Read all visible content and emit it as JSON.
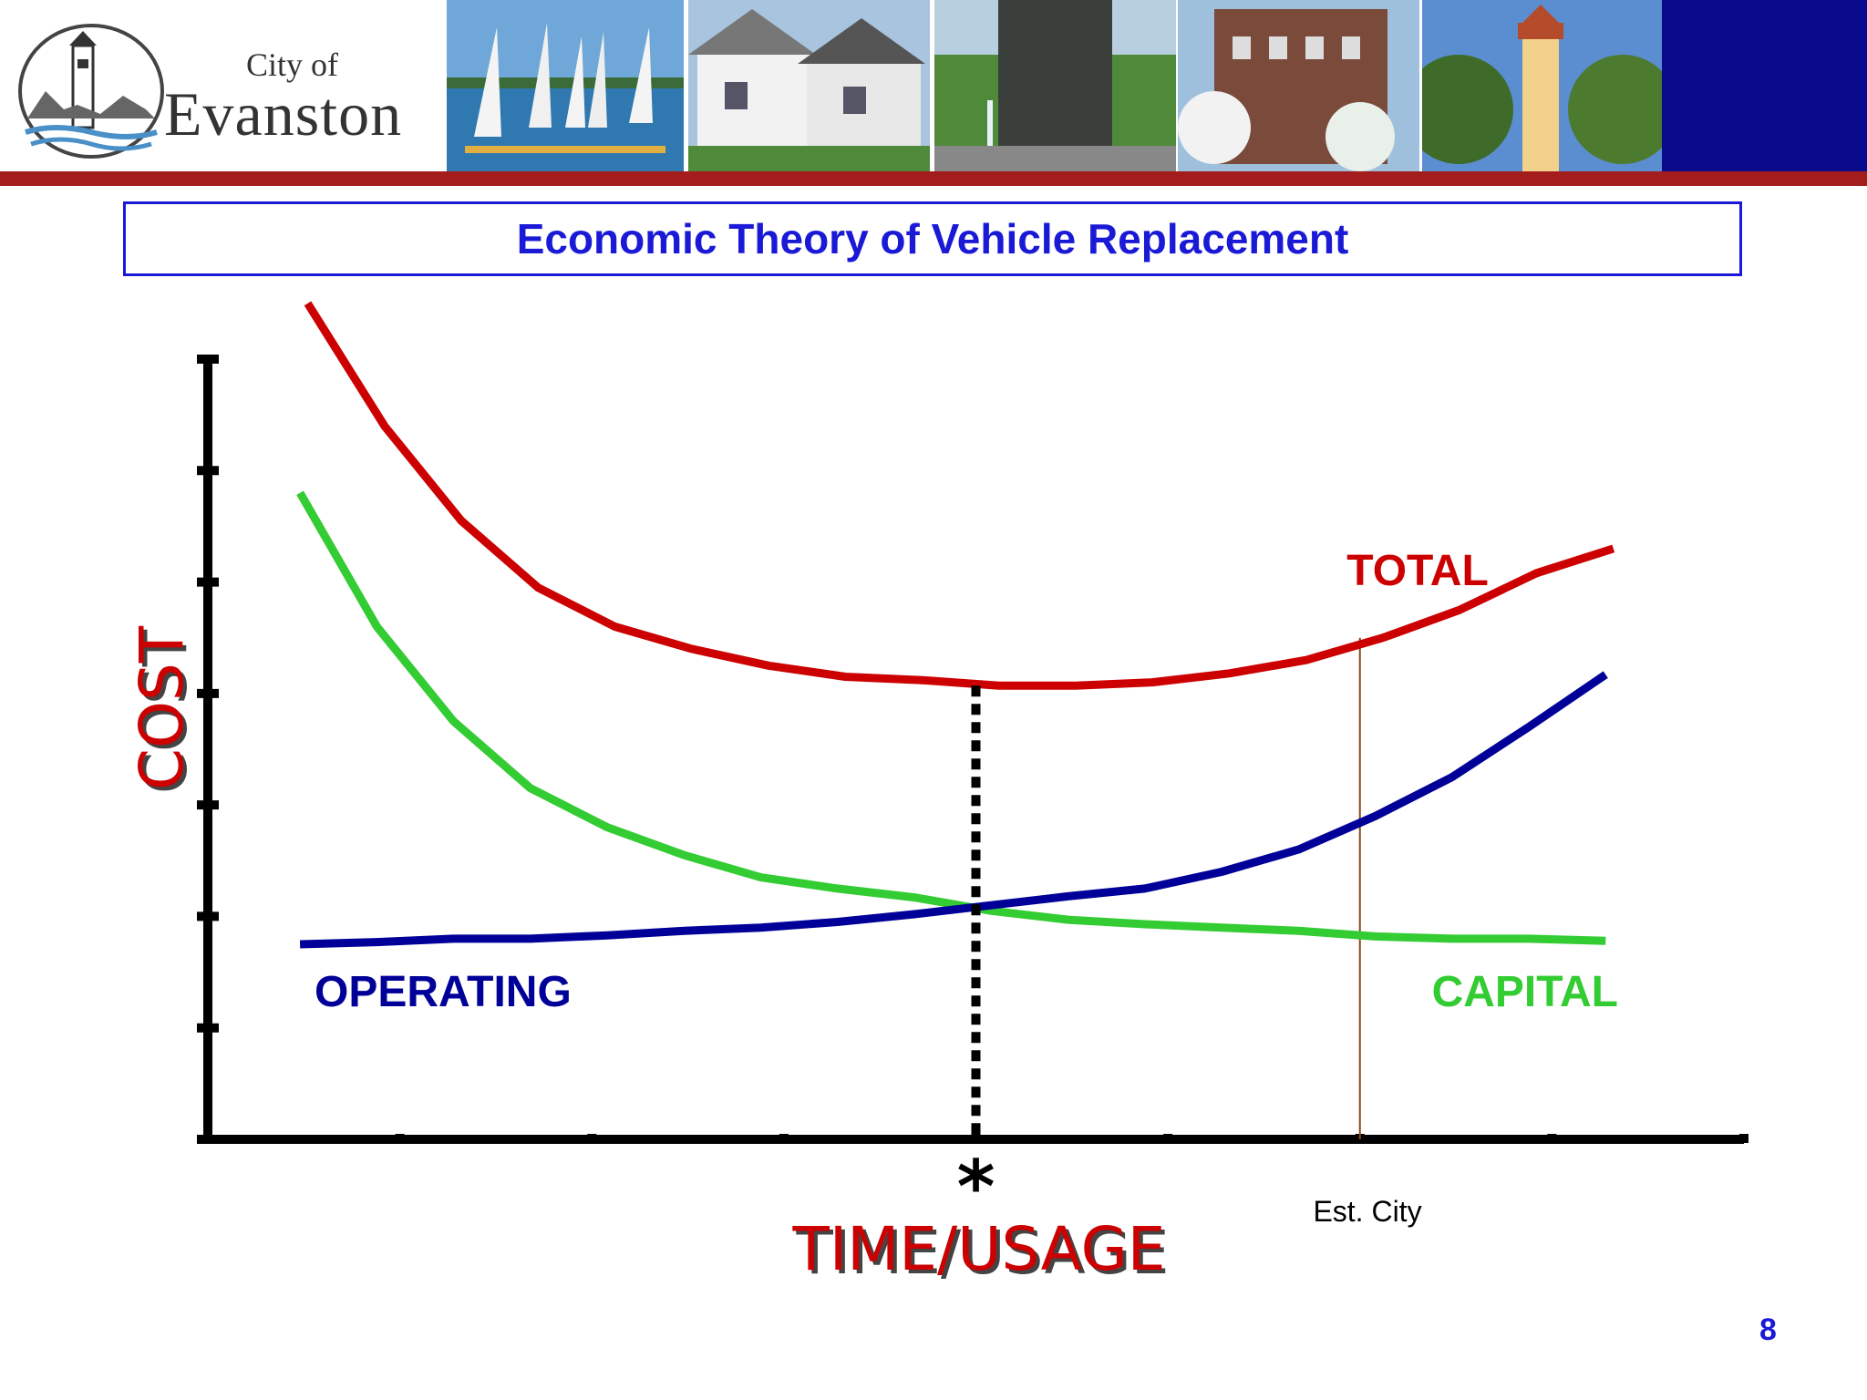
{
  "header": {
    "logo": {
      "city_of": "City of",
      "name": "Evanston"
    },
    "photos": [
      "sailboats-photo",
      "houses-photo",
      "fountain-tower-photo",
      "brick-building-photo",
      "lighthouse-photo"
    ],
    "colors": {
      "rule": "#a31d1d",
      "navy_block": "#0a0a8c"
    }
  },
  "slide": {
    "title": "Economic Theory of Vehicle Replacement",
    "page_number": "8"
  },
  "chart_data": {
    "type": "line",
    "title": "Economic Theory of Vehicle Replacement",
    "xlabel": "TIME/USAGE",
    "ylabel": "COST",
    "xlim": [
      0,
      20
    ],
    "ylim": [
      0,
      7
    ],
    "x_ticks": [
      0,
      2.5,
      5,
      7.5,
      10,
      12.5,
      15,
      17.5,
      20
    ],
    "y_ticks": [
      1,
      2,
      3,
      4,
      5,
      6,
      7
    ],
    "series": [
      {
        "name": "TOTAL",
        "color": "#cc0000",
        "x": [
          1.3,
          2.3,
          3.3,
          4.3,
          5.3,
          6.3,
          7.3,
          8.3,
          9.3,
          10.3,
          11.3,
          12.3,
          13.3,
          14.3,
          15.3,
          16.3,
          17.3,
          18.3
        ],
        "y": [
          7.5,
          6.4,
          5.55,
          4.95,
          4.6,
          4.4,
          4.25,
          4.15,
          4.12,
          4.07,
          4.07,
          4.1,
          4.18,
          4.3,
          4.5,
          4.75,
          5.08,
          5.3
        ]
      },
      {
        "name": "CAPITAL",
        "color": "#33cc33",
        "x": [
          1.2,
          2.2,
          3.2,
          4.2,
          5.2,
          6.2,
          7.2,
          8.2,
          9.2,
          10.2,
          11.2,
          12.2,
          13.2,
          14.2,
          15.2,
          16.2,
          17.2,
          18.2
        ],
        "y": [
          5.8,
          4.6,
          3.75,
          3.15,
          2.8,
          2.55,
          2.35,
          2.25,
          2.17,
          2.05,
          1.97,
          1.93,
          1.9,
          1.87,
          1.82,
          1.8,
          1.8,
          1.78
        ]
      },
      {
        "name": "OPERATING",
        "color": "#000099",
        "x": [
          1.2,
          2.2,
          3.2,
          4.2,
          5.2,
          6.2,
          7.2,
          8.2,
          9.2,
          10.2,
          11.2,
          12.2,
          13.2,
          14.2,
          15.2,
          16.2,
          17.2,
          18.2
        ],
        "y": [
          1.75,
          1.77,
          1.8,
          1.8,
          1.83,
          1.87,
          1.9,
          1.95,
          2.02,
          2.1,
          2.18,
          2.25,
          2.4,
          2.6,
          2.9,
          3.25,
          3.7,
          4.17
        ]
      }
    ],
    "optimum_marker": {
      "x": 10,
      "symbol": "*"
    },
    "estimated_city_marker": {
      "x": 15,
      "label": "Est. City"
    },
    "grid": false
  }
}
